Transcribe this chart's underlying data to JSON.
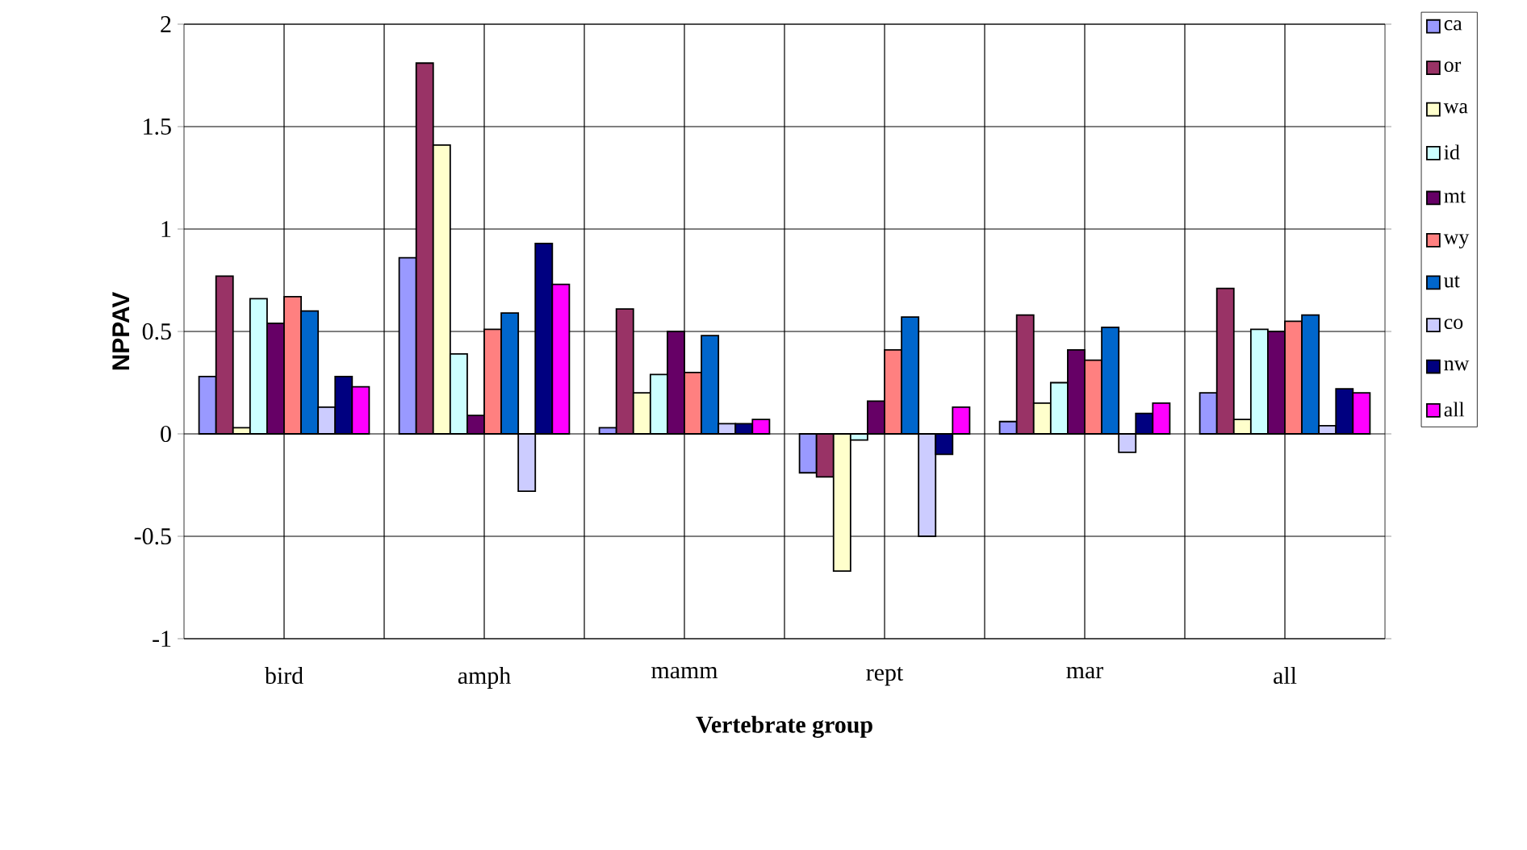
{
  "chart_data": {
    "type": "bar",
    "xlabel": "Vertebrate group",
    "ylabel": "NPPAV",
    "categories": [
      "bird",
      "amph",
      "mamm",
      "rept",
      "mar",
      "all"
    ],
    "ylim": [
      -1,
      2
    ],
    "yticks": [
      -1,
      -0.5,
      0,
      0.5,
      1,
      1.5,
      2
    ],
    "grid": true,
    "legend": "right",
    "series": [
      {
        "name": "ca",
        "color": "#9999ff",
        "values": [
          0.28,
          0.86,
          0.03,
          -0.19,
          0.06,
          0.2
        ]
      },
      {
        "name": "or",
        "color": "#993366",
        "values": [
          0.77,
          1.81,
          0.61,
          -0.21,
          0.58,
          0.71
        ]
      },
      {
        "name": "wa",
        "color": "#ffffcc",
        "values": [
          0.03,
          1.41,
          0.2,
          -0.67,
          0.15,
          0.07
        ]
      },
      {
        "name": "id",
        "color": "#ccffff",
        "values": [
          0.66,
          0.39,
          0.29,
          -0.03,
          0.25,
          0.51
        ]
      },
      {
        "name": "mt",
        "color": "#660066",
        "values": [
          0.54,
          0.09,
          0.5,
          0.16,
          0.41,
          0.5
        ]
      },
      {
        "name": "wy",
        "color": "#ff8080",
        "values": [
          0.67,
          0.51,
          0.3,
          0.41,
          0.36,
          0.55
        ]
      },
      {
        "name": "ut",
        "color": "#0066cc",
        "values": [
          0.6,
          0.59,
          0.48,
          0.57,
          0.52,
          0.58
        ]
      },
      {
        "name": "co",
        "color": "#ccccff",
        "values": [
          0.13,
          -0.28,
          0.05,
          -0.5,
          -0.09,
          0.04
        ]
      },
      {
        "name": "nw",
        "color": "#000080",
        "values": [
          0.28,
          0.93,
          0.05,
          -0.1,
          0.1,
          0.22
        ]
      },
      {
        "name": "all",
        "color": "#ff00ff",
        "values": [
          0.23,
          0.73,
          0.07,
          0.13,
          0.15,
          0.2
        ]
      }
    ]
  }
}
